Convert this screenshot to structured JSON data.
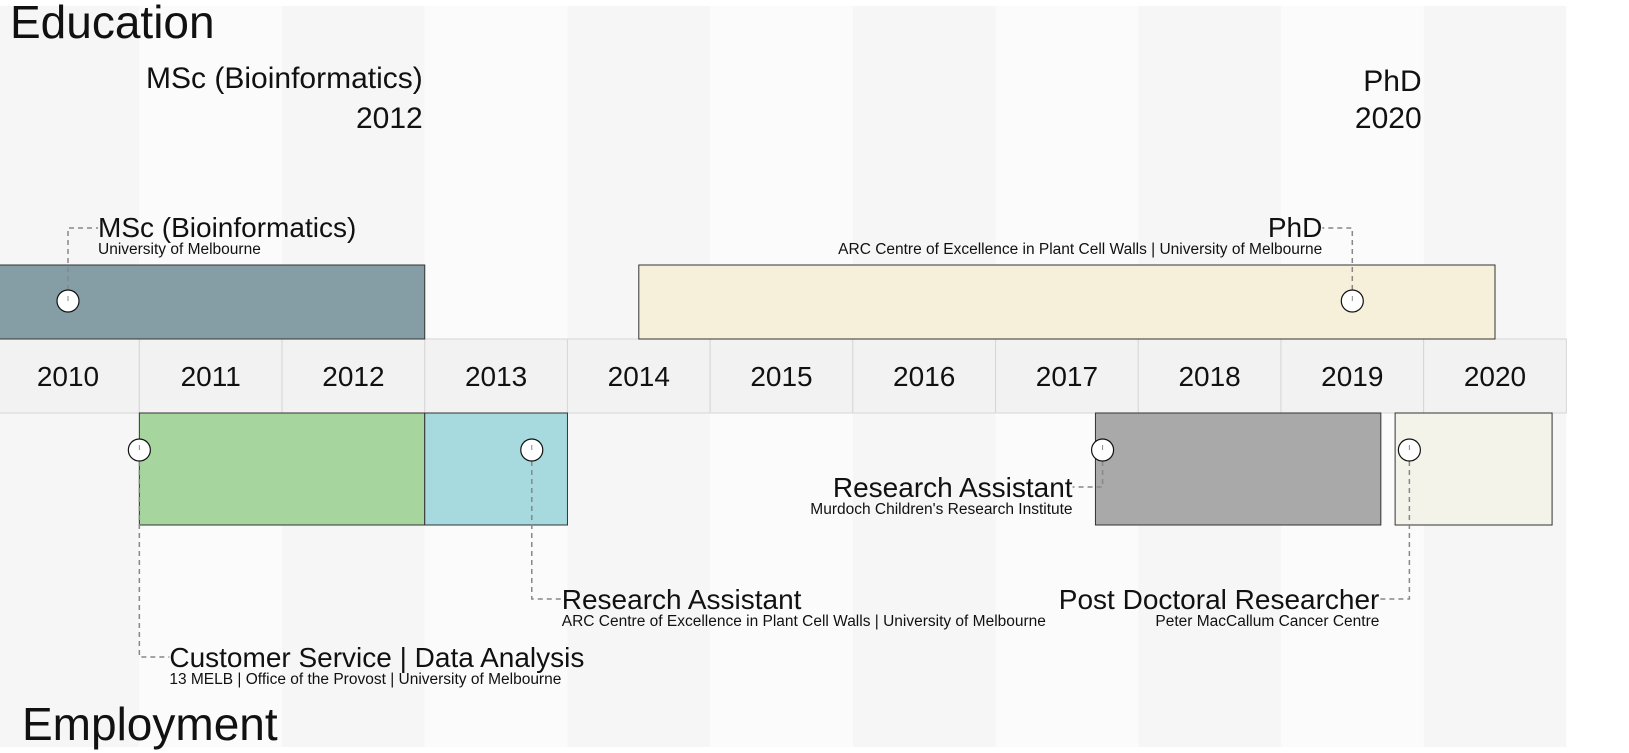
{
  "years": [
    "2010",
    "2011",
    "2012",
    "2013",
    "2014",
    "2015",
    "2016",
    "2017",
    "2018",
    "2019",
    "2020"
  ],
  "education": {
    "title": "Education",
    "milestones": [
      {
        "label": "MSc (Bioinformatics)",
        "year": "2012"
      },
      {
        "label": "PhD",
        "year": "2020"
      }
    ],
    "items": [
      {
        "title": "MSc (Bioinformatics)",
        "org": "University of Melbourne",
        "start": 2009.0,
        "end": 2012.5,
        "marker": 2010.0,
        "color": "#859ea6"
      },
      {
        "title": "PhD",
        "org": "ARC Centre of Excellence in Plant Cell Walls | University of Melbourne",
        "start": 2014.0,
        "end": 2020.0,
        "marker": 2019.0,
        "color": "#f6f0db"
      }
    ]
  },
  "employment": {
    "title": "Employment",
    "items": [
      {
        "title": "Customer  Service | Data Analysis",
        "org": "13 MELB | Office of the Provost | University of Melbourne",
        "start": 2010.5,
        "end": 2012.5,
        "marker": 2010.5,
        "color": "#a6d69e"
      },
      {
        "title": "Research Assistant",
        "org": "ARC Centre of Excellence in Plant Cell Walls | University of Melbourne",
        "start": 2012.5,
        "end": 2013.5,
        "marker": 2013.25,
        "color": "#a6dade"
      },
      {
        "title": "Research Assistant",
        "org": "Murdoch Children's Research Institute",
        "start": 2017.2,
        "end": 2019.2,
        "marker": 2017.25,
        "color": "#a9a9a9"
      },
      {
        "title": "Post Doctoral Researcher",
        "org": "Peter MacCallum Cancer Centre",
        "start": 2019.3,
        "end": 2020.4,
        "marker": 2019.4,
        "color": "#f3f3ea"
      }
    ]
  }
}
